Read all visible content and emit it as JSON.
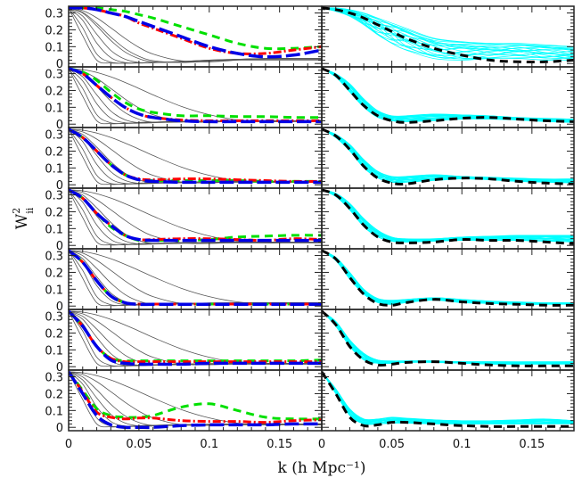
{
  "chart_data": {
    "type": "line",
    "layout": "7 rows x 2 columns of panels",
    "xlabel": "k (h Mpc⁻¹)",
    "ylabel": "W",
    "ylabel_sup": "2",
    "ylabel_sub": "ii",
    "xlim": [
      0,
      0.18
    ],
    "ylim": [
      -0.02,
      0.34
    ],
    "x_ticks": [
      "0",
      "0.05",
      "0.1",
      "0.15"
    ],
    "x_tick_values": [
      0,
      0.05,
      0.1,
      0.15
    ],
    "y_ticks": [
      "0",
      "0.1",
      "0.2",
      "0.3"
    ],
    "y_tick_values": [
      0,
      0.1,
      0.2,
      0.3
    ],
    "grid": false,
    "colors": {
      "red": "#ff0000",
      "green": "#00e000",
      "blue": "#0000e6",
      "black": "#000000",
      "cyan": "#00ffff",
      "gray": "#555555"
    },
    "k": [
      0,
      0.01,
      0.02,
      0.03,
      0.04,
      0.05,
      0.06,
      0.08,
      0.1,
      0.12,
      0.14,
      0.16,
      0.18
    ],
    "gray_default": [
      [
        0.33,
        0.165,
        0.02,
        0.003,
        0.005,
        0.01,
        0.012,
        0.015,
        0.015,
        0.015,
        0.015,
        0.015,
        0.015
      ],
      [
        0.33,
        0.212,
        0.056,
        0.008,
        0.004,
        0.008,
        0.012,
        0.016,
        0.016,
        0.016,
        0.016,
        0.016,
        0.016
      ],
      [
        0.33,
        0.257,
        0.121,
        0.035,
        0.008,
        0.006,
        0.01,
        0.016,
        0.018,
        0.018,
        0.018,
        0.018,
        0.018
      ],
      [
        0.33,
        0.281,
        0.174,
        0.078,
        0.026,
        0.008,
        0.008,
        0.015,
        0.018,
        0.018,
        0.018,
        0.018,
        0.018
      ],
      [
        0.33,
        0.299,
        0.223,
        0.137,
        0.069,
        0.029,
        0.012,
        0.012,
        0.018,
        0.02,
        0.02,
        0.02,
        0.02
      ],
      [
        0.33,
        0.314,
        0.271,
        0.212,
        0.15,
        0.096,
        0.056,
        0.016,
        0.012,
        0.018,
        0.02,
        0.02,
        0.02
      ],
      [
        0.33,
        0.324,
        0.307,
        0.281,
        0.248,
        0.212,
        0.174,
        0.106,
        0.056,
        0.025,
        0.015,
        0.018,
        0.02
      ]
    ],
    "panels": [
      {
        "gray": [
          [
            0.33,
            0.165,
            0.02,
            0.003,
            0.002,
            0.004,
            0.006,
            0.01,
            0.015,
            0.02,
            0.02,
            0.02,
            0.02
          ],
          [
            0.33,
            0.212,
            0.056,
            0.008,
            0.002,
            0.004,
            0.006,
            0.012,
            0.018,
            0.022,
            0.022,
            0.022,
            0.022
          ],
          [
            0.33,
            0.257,
            0.121,
            0.035,
            0.006,
            0.003,
            0.006,
            0.012,
            0.02,
            0.025,
            0.025,
            0.025,
            0.025
          ],
          [
            0.33,
            0.281,
            0.174,
            0.078,
            0.026,
            0.006,
            0.005,
            0.012,
            0.02,
            0.025,
            0.028,
            0.028,
            0.028
          ],
          [
            0.33,
            0.299,
            0.223,
            0.137,
            0.069,
            0.029,
            0.01,
            0.008,
            0.018,
            0.025,
            0.03,
            0.03,
            0.03
          ],
          [
            0.33,
            0.304,
            0.238,
            0.158,
            0.089,
            0.043,
            0.017,
            0.006,
            0.015,
            0.025,
            0.03,
            0.03,
            0.03
          ],
          [
            0.33,
            0.314,
            0.271,
            0.212,
            0.15,
            0.096,
            0.056,
            0.016,
            0.01,
            0.02,
            0.03,
            0.03,
            0.03
          ]
        ],
        "red": [
          0.33,
          0.33,
          0.32,
          0.3,
          0.28,
          0.24,
          0.21,
          0.15,
          0.09,
          0.06,
          0.06,
          0.08,
          0.1
        ],
        "green": [
          0.33,
          0.33,
          0.33,
          0.32,
          0.31,
          0.29,
          0.27,
          0.22,
          0.17,
          0.12,
          0.09,
          0.09,
          0.1
        ],
        "blue": [
          0.33,
          0.33,
          0.32,
          0.3,
          0.28,
          0.25,
          0.22,
          0.16,
          0.1,
          0.06,
          0.04,
          0.05,
          0.08
        ],
        "black": [
          0.33,
          0.32,
          0.3,
          0.27,
          0.23,
          0.19,
          0.15,
          0.09,
          0.05,
          0.02,
          0.01,
          0.01,
          0.02
        ],
        "cyan_low": [
          0.33,
          0.31,
          0.28,
          0.23,
          0.17,
          0.12,
          0.08,
          0.03,
          0.02,
          0.03,
          0.03,
          0.02,
          0.02
        ],
        "cyan_high": [
          0.33,
          0.33,
          0.32,
          0.3,
          0.27,
          0.24,
          0.21,
          0.15,
          0.13,
          0.12,
          0.12,
          0.11,
          0.1
        ]
      },
      {
        "red": [
          0.33,
          0.3,
          0.23,
          0.16,
          0.1,
          0.06,
          0.04,
          0.025,
          0.02,
          0.02,
          0.02,
          0.02,
          0.02
        ],
        "green": [
          0.33,
          0.31,
          0.26,
          0.19,
          0.13,
          0.09,
          0.07,
          0.05,
          0.05,
          0.045,
          0.045,
          0.04,
          0.04
        ],
        "blue": [
          0.33,
          0.3,
          0.23,
          0.16,
          0.1,
          0.06,
          0.04,
          0.02,
          0.015,
          0.015,
          0.015,
          0.015,
          0.015
        ],
        "black": [
          0.33,
          0.29,
          0.2,
          0.11,
          0.05,
          0.02,
          0.01,
          0.02,
          0.035,
          0.04,
          0.03,
          0.02,
          0.015
        ],
        "cyan_low": [
          0.33,
          0.28,
          0.19,
          0.1,
          0.04,
          0.02,
          0.015,
          0.02,
          0.03,
          0.03,
          0.025,
          0.015,
          0.01
        ],
        "cyan_high": [
          0.33,
          0.3,
          0.24,
          0.15,
          0.08,
          0.05,
          0.05,
          0.06,
          0.055,
          0.05,
          0.04,
          0.035,
          0.03
        ]
      },
      {
        "red": [
          0.33,
          0.28,
          0.2,
          0.12,
          0.06,
          0.035,
          0.03,
          0.035,
          0.035,
          0.03,
          0.025,
          0.02,
          0.02
        ],
        "green": [
          0.33,
          0.28,
          0.2,
          0.12,
          0.06,
          0.03,
          0.025,
          0.025,
          0.025,
          0.025,
          0.02,
          0.02,
          0.02
        ],
        "blue": [
          0.33,
          0.28,
          0.2,
          0.12,
          0.06,
          0.03,
          0.02,
          0.015,
          0.015,
          0.015,
          0.015,
          0.015,
          0.015
        ],
        "black": [
          0.33,
          0.29,
          0.21,
          0.11,
          0.04,
          0.01,
          0.005,
          0.03,
          0.04,
          0.035,
          0.02,
          0.01,
          0.005
        ],
        "cyan_low": [
          0.33,
          0.28,
          0.2,
          0.1,
          0.04,
          0.015,
          0.015,
          0.025,
          0.035,
          0.03,
          0.02,
          0.015,
          0.01
        ],
        "cyan_high": [
          0.33,
          0.3,
          0.24,
          0.15,
          0.08,
          0.05,
          0.05,
          0.06,
          0.05,
          0.045,
          0.04,
          0.035,
          0.035
        ]
      },
      {
        "red": [
          0.33,
          0.28,
          0.19,
          0.12,
          0.06,
          0.035,
          0.035,
          0.04,
          0.04,
          0.035,
          0.03,
          0.04,
          0.035
        ],
        "green": [
          0.33,
          0.28,
          0.19,
          0.11,
          0.06,
          0.03,
          0.03,
          0.03,
          0.035,
          0.05,
          0.055,
          0.06,
          0.06
        ],
        "blue": [
          0.33,
          0.28,
          0.19,
          0.12,
          0.06,
          0.035,
          0.03,
          0.03,
          0.03,
          0.03,
          0.03,
          0.03,
          0.03
        ],
        "black": [
          0.33,
          0.3,
          0.22,
          0.12,
          0.05,
          0.02,
          0.015,
          0.02,
          0.035,
          0.03,
          0.03,
          0.02,
          0.01
        ],
        "cyan_low": [
          0.33,
          0.29,
          0.21,
          0.11,
          0.05,
          0.025,
          0.02,
          0.025,
          0.03,
          0.03,
          0.03,
          0.025,
          0.02
        ],
        "cyan_high": [
          0.33,
          0.31,
          0.25,
          0.16,
          0.09,
          0.05,
          0.04,
          0.04,
          0.05,
          0.055,
          0.06,
          0.06,
          0.06
        ]
      },
      {
        "red": [
          0.33,
          0.26,
          0.15,
          0.06,
          0.02,
          0.012,
          0.012,
          0.012,
          0.012,
          0.012,
          0.012,
          0.012,
          0.012
        ],
        "green": [
          0.33,
          0.26,
          0.15,
          0.06,
          0.02,
          0.012,
          0.012,
          0.012,
          0.012,
          0.012,
          0.012,
          0.012,
          0.012
        ],
        "blue": [
          0.33,
          0.26,
          0.15,
          0.06,
          0.02,
          0.01,
          0.01,
          0.01,
          0.01,
          0.01,
          0.01,
          0.01,
          0.01
        ],
        "black": [
          0.33,
          0.28,
          0.17,
          0.07,
          0.015,
          0.005,
          0.02,
          0.04,
          0.025,
          0.015,
          0.01,
          0.005,
          0.005
        ],
        "cyan_low": [
          0.33,
          0.27,
          0.16,
          0.07,
          0.02,
          0.01,
          0.02,
          0.035,
          0.02,
          0.015,
          0.01,
          0.01,
          0.01
        ],
        "cyan_high": [
          0.33,
          0.29,
          0.2,
          0.1,
          0.045,
          0.035,
          0.04,
          0.05,
          0.04,
          0.03,
          0.025,
          0.02,
          0.02
        ]
      },
      {
        "red": [
          0.33,
          0.24,
          0.12,
          0.05,
          0.03,
          0.03,
          0.03,
          0.03,
          0.03,
          0.03,
          0.03,
          0.03,
          0.03
        ],
        "green": [
          0.33,
          0.24,
          0.12,
          0.05,
          0.035,
          0.035,
          0.035,
          0.035,
          0.035,
          0.035,
          0.035,
          0.035,
          0.04
        ],
        "blue": [
          0.33,
          0.24,
          0.12,
          0.04,
          0.02,
          0.015,
          0.015,
          0.015,
          0.02,
          0.02,
          0.02,
          0.02,
          0.02
        ],
        "black": [
          0.33,
          0.25,
          0.12,
          0.04,
          0.01,
          0.015,
          0.025,
          0.03,
          0.02,
          0.01,
          0.005,
          0.005,
          0.005
        ],
        "cyan_low": [
          0.33,
          0.24,
          0.12,
          0.04,
          0.02,
          0.02,
          0.025,
          0.025,
          0.02,
          0.015,
          0.015,
          0.015,
          0.015
        ],
        "cyan_high": [
          0.33,
          0.27,
          0.16,
          0.08,
          0.04,
          0.035,
          0.035,
          0.035,
          0.03,
          0.03,
          0.03,
          0.03,
          0.03
        ]
      },
      {
        "red": [
          0.33,
          0.21,
          0.09,
          0.06,
          0.05,
          0.055,
          0.055,
          0.04,
          0.035,
          0.035,
          0.03,
          0.04,
          0.045
        ],
        "green": [
          0.33,
          0.22,
          0.11,
          0.07,
          0.06,
          0.06,
          0.07,
          0.12,
          0.14,
          0.1,
          0.06,
          0.05,
          0.05
        ],
        "blue": [
          0.33,
          0.2,
          0.07,
          0.015,
          0.0,
          0.0,
          0.0,
          0.01,
          0.015,
          0.015,
          0.015,
          0.02,
          0.02
        ],
        "black": [
          0.33,
          0.2,
          0.06,
          0.01,
          0.015,
          0.03,
          0.03,
          0.02,
          0.01,
          0.005,
          0.005,
          0.005,
          0.005
        ],
        "cyan_low": [
          0.33,
          0.2,
          0.07,
          0.02,
          0.02,
          0.025,
          0.025,
          0.02,
          0.02,
          0.02,
          0.02,
          0.02,
          0.02
        ],
        "cyan_high": [
          0.33,
          0.23,
          0.11,
          0.05,
          0.05,
          0.06,
          0.055,
          0.045,
          0.04,
          0.04,
          0.045,
          0.05,
          0.04
        ]
      }
    ]
  }
}
